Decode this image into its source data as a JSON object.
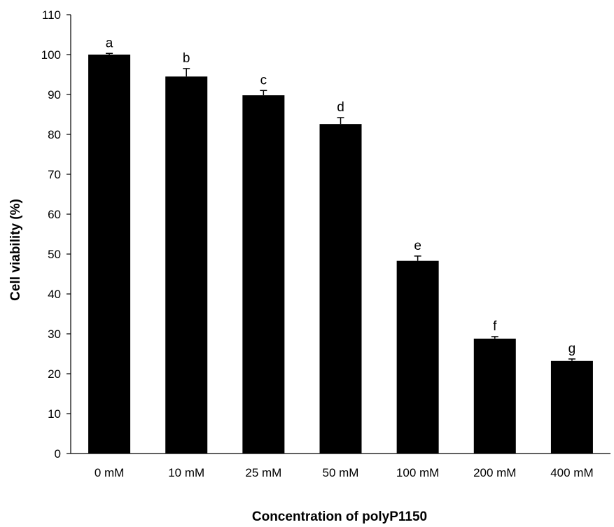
{
  "chart_data": {
    "type": "bar",
    "title": "",
    "xlabel": "Concentration of polyP1150",
    "ylabel": "Cell viability (%)",
    "categories": [
      "0 mM",
      "10 mM",
      "25 mM",
      "50 mM",
      "100 mM",
      "200 mM",
      "400 mM"
    ],
    "values": [
      100,
      94.5,
      89.8,
      82.6,
      48.3,
      28.8,
      23.2
    ],
    "errors": [
      0.3,
      2.0,
      1.2,
      1.6,
      1.2,
      0.5,
      0.5
    ],
    "significance_labels": [
      "a",
      "b",
      "c",
      "d",
      "e",
      "f",
      "g"
    ],
    "ylim": [
      0,
      110
    ],
    "yticks": [
      0,
      10,
      20,
      30,
      40,
      50,
      60,
      70,
      80,
      90,
      100,
      110
    ],
    "grid": false,
    "legend": "none",
    "colors": {
      "bar": "#000000",
      "axis": "#000000",
      "background": "#ffffff"
    }
  }
}
